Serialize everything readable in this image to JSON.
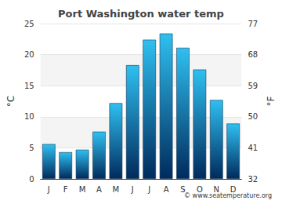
{
  "chart_data": {
    "type": "bar",
    "title": "Port Washington water temp",
    "categories": [
      "J",
      "F",
      "M",
      "A",
      "M",
      "J",
      "J",
      "A",
      "S",
      "O",
      "N",
      "D"
    ],
    "values": [
      5.6,
      4.3,
      4.7,
      7.6,
      12.2,
      18.3,
      22.4,
      23.4,
      21.1,
      17.6,
      12.7,
      8.9
    ],
    "color": "#2ec0f0",
    "ylabel": "°C",
    "ylim": [
      0,
      25
    ],
    "yticks": [
      0,
      5,
      10,
      15,
      20,
      25
    ],
    "y2label": "°F",
    "y2lim": [
      32,
      77
    ],
    "y2ticks": [
      32,
      41,
      50,
      59,
      68,
      77
    ],
    "grid": true,
    "annotation": "© www.seatemperature.org"
  }
}
